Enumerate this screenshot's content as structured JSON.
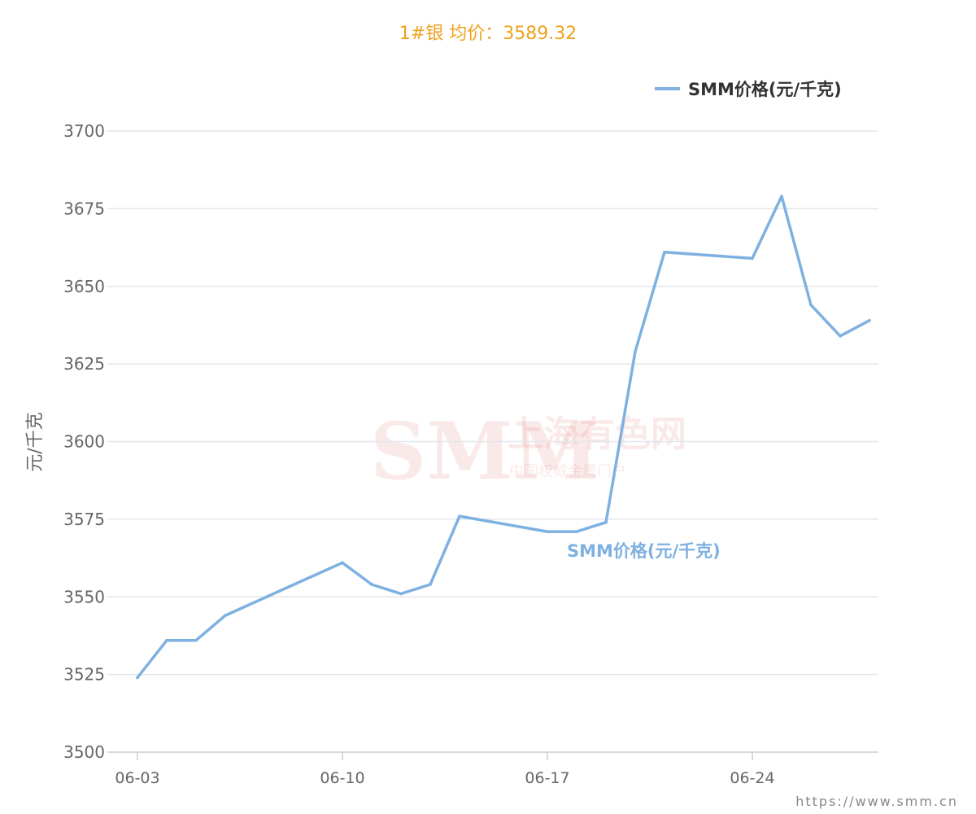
{
  "title": "1#银 均价：3589.32",
  "source_url": "https://www.smm.cn",
  "watermark": {
    "logo": "SMM",
    "cn_name": "上海有色网",
    "slogan": "中国权威金属门户"
  },
  "colors": {
    "series": "#7fb1e0",
    "title": "#f0a21e",
    "grid": "#e3e6ea",
    "watermark": "#d9534f"
  },
  "chart_data": {
    "type": "line",
    "title": "1#银 均价：3589.32",
    "xlabel": "",
    "ylabel": "元/千克",
    "ylim": [
      3500,
      3700
    ],
    "yticks": [
      3500,
      3525,
      3550,
      3575,
      3600,
      3625,
      3650,
      3675,
      3700
    ],
    "x_tick_labels": [
      "06-03",
      "06-10",
      "06-17",
      "06-24"
    ],
    "x_tick_days": [
      3,
      10,
      17,
      24
    ],
    "grid": true,
    "legend_position": "top-right",
    "series": [
      {
        "name": "SMM价格(元/千克)",
        "points": [
          {
            "date": "06-03",
            "value": 3524
          },
          {
            "date": "06-04",
            "value": 3536
          },
          {
            "date": "06-05",
            "value": 3536
          },
          {
            "date": "06-06",
            "value": 3544
          },
          {
            "date": "06-10",
            "value": 3561
          },
          {
            "date": "06-11",
            "value": 3554
          },
          {
            "date": "06-12",
            "value": 3551
          },
          {
            "date": "06-13",
            "value": 3554
          },
          {
            "date": "06-14",
            "value": 3576
          },
          {
            "date": "06-17",
            "value": 3571
          },
          {
            "date": "06-18",
            "value": 3571
          },
          {
            "date": "06-19",
            "value": 3574
          },
          {
            "date": "06-20",
            "value": 3629
          },
          {
            "date": "06-21",
            "value": 3661
          },
          {
            "date": "06-24",
            "value": 3659
          },
          {
            "date": "06-25",
            "value": 3679
          },
          {
            "date": "06-26",
            "value": 3644
          },
          {
            "date": "06-27",
            "value": 3634
          },
          {
            "date": "06-28",
            "value": 3639
          }
        ]
      }
    ]
  }
}
